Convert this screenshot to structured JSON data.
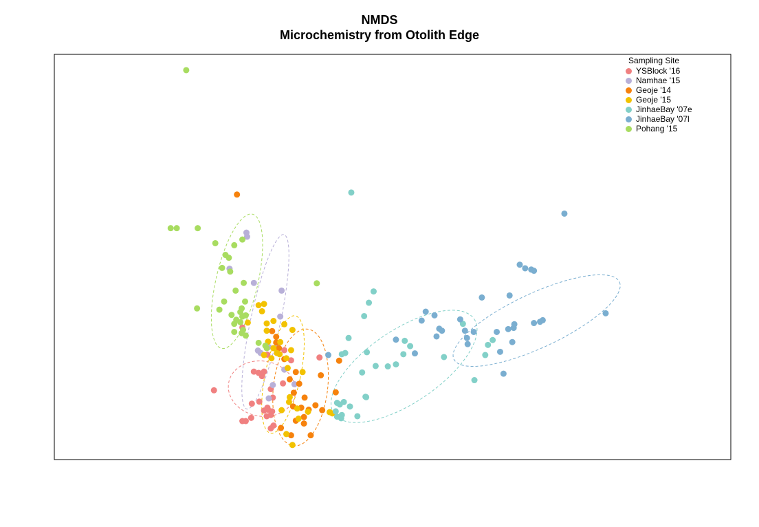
{
  "chart_data": {
    "type": "scatter",
    "title": "NMDS",
    "subtitle": "Microchemistry from Otolith Edge",
    "xlabel": "",
    "ylabel": "",
    "xlim": [
      0,
      100
    ],
    "ylim": [
      0,
      100
    ],
    "axes_visible": false,
    "grid": false,
    "legend_title": "Sampling Site",
    "legend_placement": "top-right",
    "series": [
      {
        "name": "YSBlock '16",
        "color": "#f08080",
        "points": [
          [
            27.8,
            32.6
          ],
          [
            34.0,
            27.0
          ],
          [
            35.0,
            24.5
          ],
          [
            30.7,
            20.6
          ],
          [
            31.5,
            25.9
          ],
          [
            31.0,
            21.7
          ],
          [
            30.2,
            21.4
          ],
          [
            29.5,
            21.7
          ],
          [
            30.3,
            14.3
          ],
          [
            29.2,
            13.8
          ],
          [
            31.6,
            12.3
          ],
          [
            31.4,
            10.7
          ],
          [
            32.2,
            11.9
          ],
          [
            32.4,
            8.4
          ],
          [
            33.8,
            18.8
          ],
          [
            32.0,
            17.4
          ],
          [
            32.3,
            15.3
          ],
          [
            31.5,
            12.8
          ],
          [
            31.0,
            12.1
          ],
          [
            32.0,
            11.0
          ],
          [
            29.1,
            10.3
          ],
          [
            28.3,
            9.5
          ],
          [
            23.6,
            17.1
          ],
          [
            27.8,
            9.5
          ],
          [
            32.0,
            7.7
          ],
          [
            39.2,
            25.2
          ]
        ]
      },
      {
        "name": "Namhae '15",
        "color": "#b8b0d8",
        "points": [
          [
            28.5,
            55.0
          ],
          [
            28.4,
            56.0
          ],
          [
            25.9,
            47.1
          ],
          [
            29.5,
            43.6
          ],
          [
            33.6,
            41.7
          ],
          [
            33.4,
            35.3
          ],
          [
            33.0,
            28.6
          ],
          [
            31.7,
            27.8
          ],
          [
            30.5,
            26.3
          ],
          [
            30.1,
            26.9
          ],
          [
            34.0,
            22.2
          ],
          [
            35.5,
            18.6
          ],
          [
            32.3,
            18.4
          ],
          [
            31.7,
            15.1
          ]
        ]
      },
      {
        "name": "Geoje '14",
        "color": "#f6820d",
        "points": [
          [
            27.0,
            65.4
          ],
          [
            35.4,
            16.5
          ],
          [
            35.7,
            21.6
          ],
          [
            37.0,
            15.3
          ],
          [
            39.4,
            20.8
          ],
          [
            42.1,
            24.4
          ],
          [
            39.6,
            12.2
          ],
          [
            38.6,
            13.4
          ],
          [
            37.6,
            12.3
          ],
          [
            36.5,
            12.8
          ],
          [
            35.3,
            13.1
          ],
          [
            36.9,
            10.5
          ],
          [
            35.7,
            9.6
          ],
          [
            36.9,
            8.9
          ],
          [
            33.5,
            7.8
          ],
          [
            35.0,
            6.0
          ],
          [
            37.9,
            6.0
          ],
          [
            41.6,
            16.6
          ],
          [
            32.8,
            30.3
          ],
          [
            32.2,
            31.7
          ],
          [
            32.8,
            28.9
          ],
          [
            33.2,
            27.5
          ],
          [
            34.0,
            24.8
          ],
          [
            34.8,
            19.8
          ],
          [
            36.2,
            18.7
          ]
        ]
      },
      {
        "name": "Geoje '15",
        "color": "#f2c200",
        "points": [
          [
            31.4,
            33.6
          ],
          [
            31.4,
            31.8
          ],
          [
            34.0,
            33.4
          ],
          [
            35.2,
            32.0
          ],
          [
            31.6,
            29.1
          ],
          [
            32.4,
            27.5
          ],
          [
            35.0,
            27.0
          ],
          [
            34.3,
            25.0
          ],
          [
            31.0,
            38.4
          ],
          [
            32.9,
            26.3
          ],
          [
            34.5,
            22.6
          ],
          [
            32.1,
            25.0
          ],
          [
            36.7,
            21.6
          ],
          [
            34.8,
            15.4
          ],
          [
            34.7,
            14.2
          ],
          [
            35.9,
            12.6
          ],
          [
            37.5,
            11.8
          ],
          [
            36.1,
            10.1
          ],
          [
            34.3,
            6.3
          ],
          [
            35.2,
            3.6
          ],
          [
            33.6,
            12.2
          ],
          [
            28.6,
            33.8
          ],
          [
            30.2,
            38.1
          ],
          [
            30.7,
            36.6
          ],
          [
            32.4,
            34.2
          ],
          [
            33.4,
            29.0
          ],
          [
            33.3,
            26.0
          ],
          [
            31.0,
            25.8
          ],
          [
            41.1,
            11.4
          ],
          [
            40.7,
            11.7
          ]
        ]
      },
      {
        "name": "JinhaeBay '07e",
        "color": "#82d0c8",
        "points": [
          [
            43.9,
            65.9
          ],
          [
            47.2,
            41.5
          ],
          [
            46.5,
            38.7
          ],
          [
            45.8,
            35.4
          ],
          [
            51.8,
            29.3
          ],
          [
            51.6,
            26.0
          ],
          [
            52.6,
            28.0
          ],
          [
            43.5,
            30.0
          ],
          [
            43.0,
            26.3
          ],
          [
            42.5,
            26.0
          ],
          [
            46.2,
            26.5
          ],
          [
            47.5,
            23.1
          ],
          [
            49.3,
            23.0
          ],
          [
            50.5,
            23.5
          ],
          [
            46.1,
            15.4
          ],
          [
            46.0,
            15.5
          ],
          [
            45.5,
            21.5
          ],
          [
            42.8,
            14.2
          ],
          [
            41.8,
            14.0
          ],
          [
            42.2,
            13.6
          ],
          [
            41.6,
            11.9
          ],
          [
            43.7,
            13.1
          ],
          [
            44.8,
            10.7
          ],
          [
            42.4,
            10.2
          ],
          [
            41.8,
            10.6
          ],
          [
            42.5,
            11.0
          ],
          [
            57.6,
            25.3
          ],
          [
            62.1,
            19.6
          ],
          [
            64.1,
            28.3
          ],
          [
            60.4,
            33.5
          ],
          [
            64.8,
            29.5
          ],
          [
            63.7,
            25.8
          ]
        ]
      },
      {
        "name": "JinhaeBay '07l",
        "color": "#7aaed0",
        "points": [
          [
            75.4,
            60.7
          ],
          [
            68.8,
            48.1
          ],
          [
            69.6,
            47.2
          ],
          [
            70.5,
            46.9
          ],
          [
            70.9,
            46.6
          ],
          [
            67.3,
            40.5
          ],
          [
            63.2,
            40.0
          ],
          [
            54.9,
            36.5
          ],
          [
            54.3,
            34.3
          ],
          [
            56.2,
            35.6
          ],
          [
            56.9,
            32.3
          ],
          [
            60.0,
            34.6
          ],
          [
            60.7,
            31.8
          ],
          [
            61.0,
            30.0
          ],
          [
            62.0,
            31.5
          ],
          [
            57.3,
            31.8
          ],
          [
            56.5,
            30.4
          ],
          [
            65.4,
            31.5
          ],
          [
            67.9,
            32.5
          ],
          [
            67.1,
            32.2
          ],
          [
            68.0,
            33.4
          ],
          [
            70.9,
            33.7
          ],
          [
            71.8,
            34.0
          ],
          [
            72.2,
            34.4
          ],
          [
            65.9,
            26.6
          ],
          [
            67.7,
            29.0
          ],
          [
            66.4,
            21.2
          ],
          [
            61.1,
            28.5
          ],
          [
            81.5,
            36.1
          ],
          [
            53.3,
            26.2
          ],
          [
            50.5,
            29.6
          ],
          [
            40.5,
            25.8
          ]
        ]
      },
      {
        "name": "Pohang '15",
        "color": "#a8dc60",
        "points": [
          [
            19.5,
            96.1
          ],
          [
            17.2,
            57.1
          ],
          [
            18.1,
            57.1
          ],
          [
            21.2,
            57.1
          ],
          [
            23.8,
            53.4
          ],
          [
            24.8,
            47.3
          ],
          [
            25.3,
            50.5
          ],
          [
            26.6,
            52.9
          ],
          [
            25.8,
            49.8
          ],
          [
            26.0,
            46.4
          ],
          [
            28.0,
            43.6
          ],
          [
            26.8,
            41.7
          ],
          [
            21.1,
            37.3
          ],
          [
            24.4,
            37.0
          ],
          [
            25.1,
            39.0
          ],
          [
            28.2,
            39.0
          ],
          [
            27.7,
            37.3
          ],
          [
            28.3,
            35.6
          ],
          [
            26.2,
            35.7
          ],
          [
            27.8,
            35.3
          ],
          [
            27.5,
            33.9
          ],
          [
            27.7,
            31.2
          ],
          [
            27.9,
            32.0
          ],
          [
            28.3,
            30.6
          ],
          [
            26.6,
            31.5
          ],
          [
            26.6,
            33.5
          ],
          [
            31.4,
            27.5
          ],
          [
            30.2,
            28.8
          ],
          [
            31.2,
            28.1
          ],
          [
            26.9,
            34.5
          ],
          [
            38.8,
            43.5
          ],
          [
            27.5,
            36.4
          ],
          [
            27.8,
            54.3
          ]
        ]
      }
    ],
    "ellipses": [
      {
        "series": "YSBlock '16",
        "color": "#f08080",
        "cx": 30.7,
        "cy": 17.5,
        "rx": 5.0,
        "ry": 6.8,
        "angle": -10
      },
      {
        "series": "Namhae '15",
        "color": "#b8b0d8",
        "cx": 31.2,
        "cy": 34.0,
        "rx": 2.2,
        "ry": 22.0,
        "angle": -12
      },
      {
        "series": "Geoje '14",
        "color": "#f6820d",
        "cx": 36.4,
        "cy": 17.8,
        "rx": 4.0,
        "ry": 14.5,
        "angle": -7
      },
      {
        "series": "Geoje '15",
        "color": "#f2c200",
        "cx": 33.8,
        "cy": 21.0,
        "rx": 2.6,
        "ry": 14.8,
        "angle": -12
      },
      {
        "series": "JinhaeBay '07e",
        "color": "#82d0c8",
        "cx": 51.7,
        "cy": 23.0,
        "rx": 12.5,
        "ry": 9.0,
        "angle": 34
      },
      {
        "series": "JinhaeBay '07l",
        "color": "#7aaed0",
        "cx": 71.3,
        "cy": 34.3,
        "rx": 13.5,
        "ry": 6.7,
        "angle": 25
      },
      {
        "series": "Pohang '15",
        "color": "#a8dc60",
        "cx": 27.0,
        "cy": 44.0,
        "rx": 3.1,
        "ry": 17.0,
        "angle": -13
      }
    ]
  }
}
